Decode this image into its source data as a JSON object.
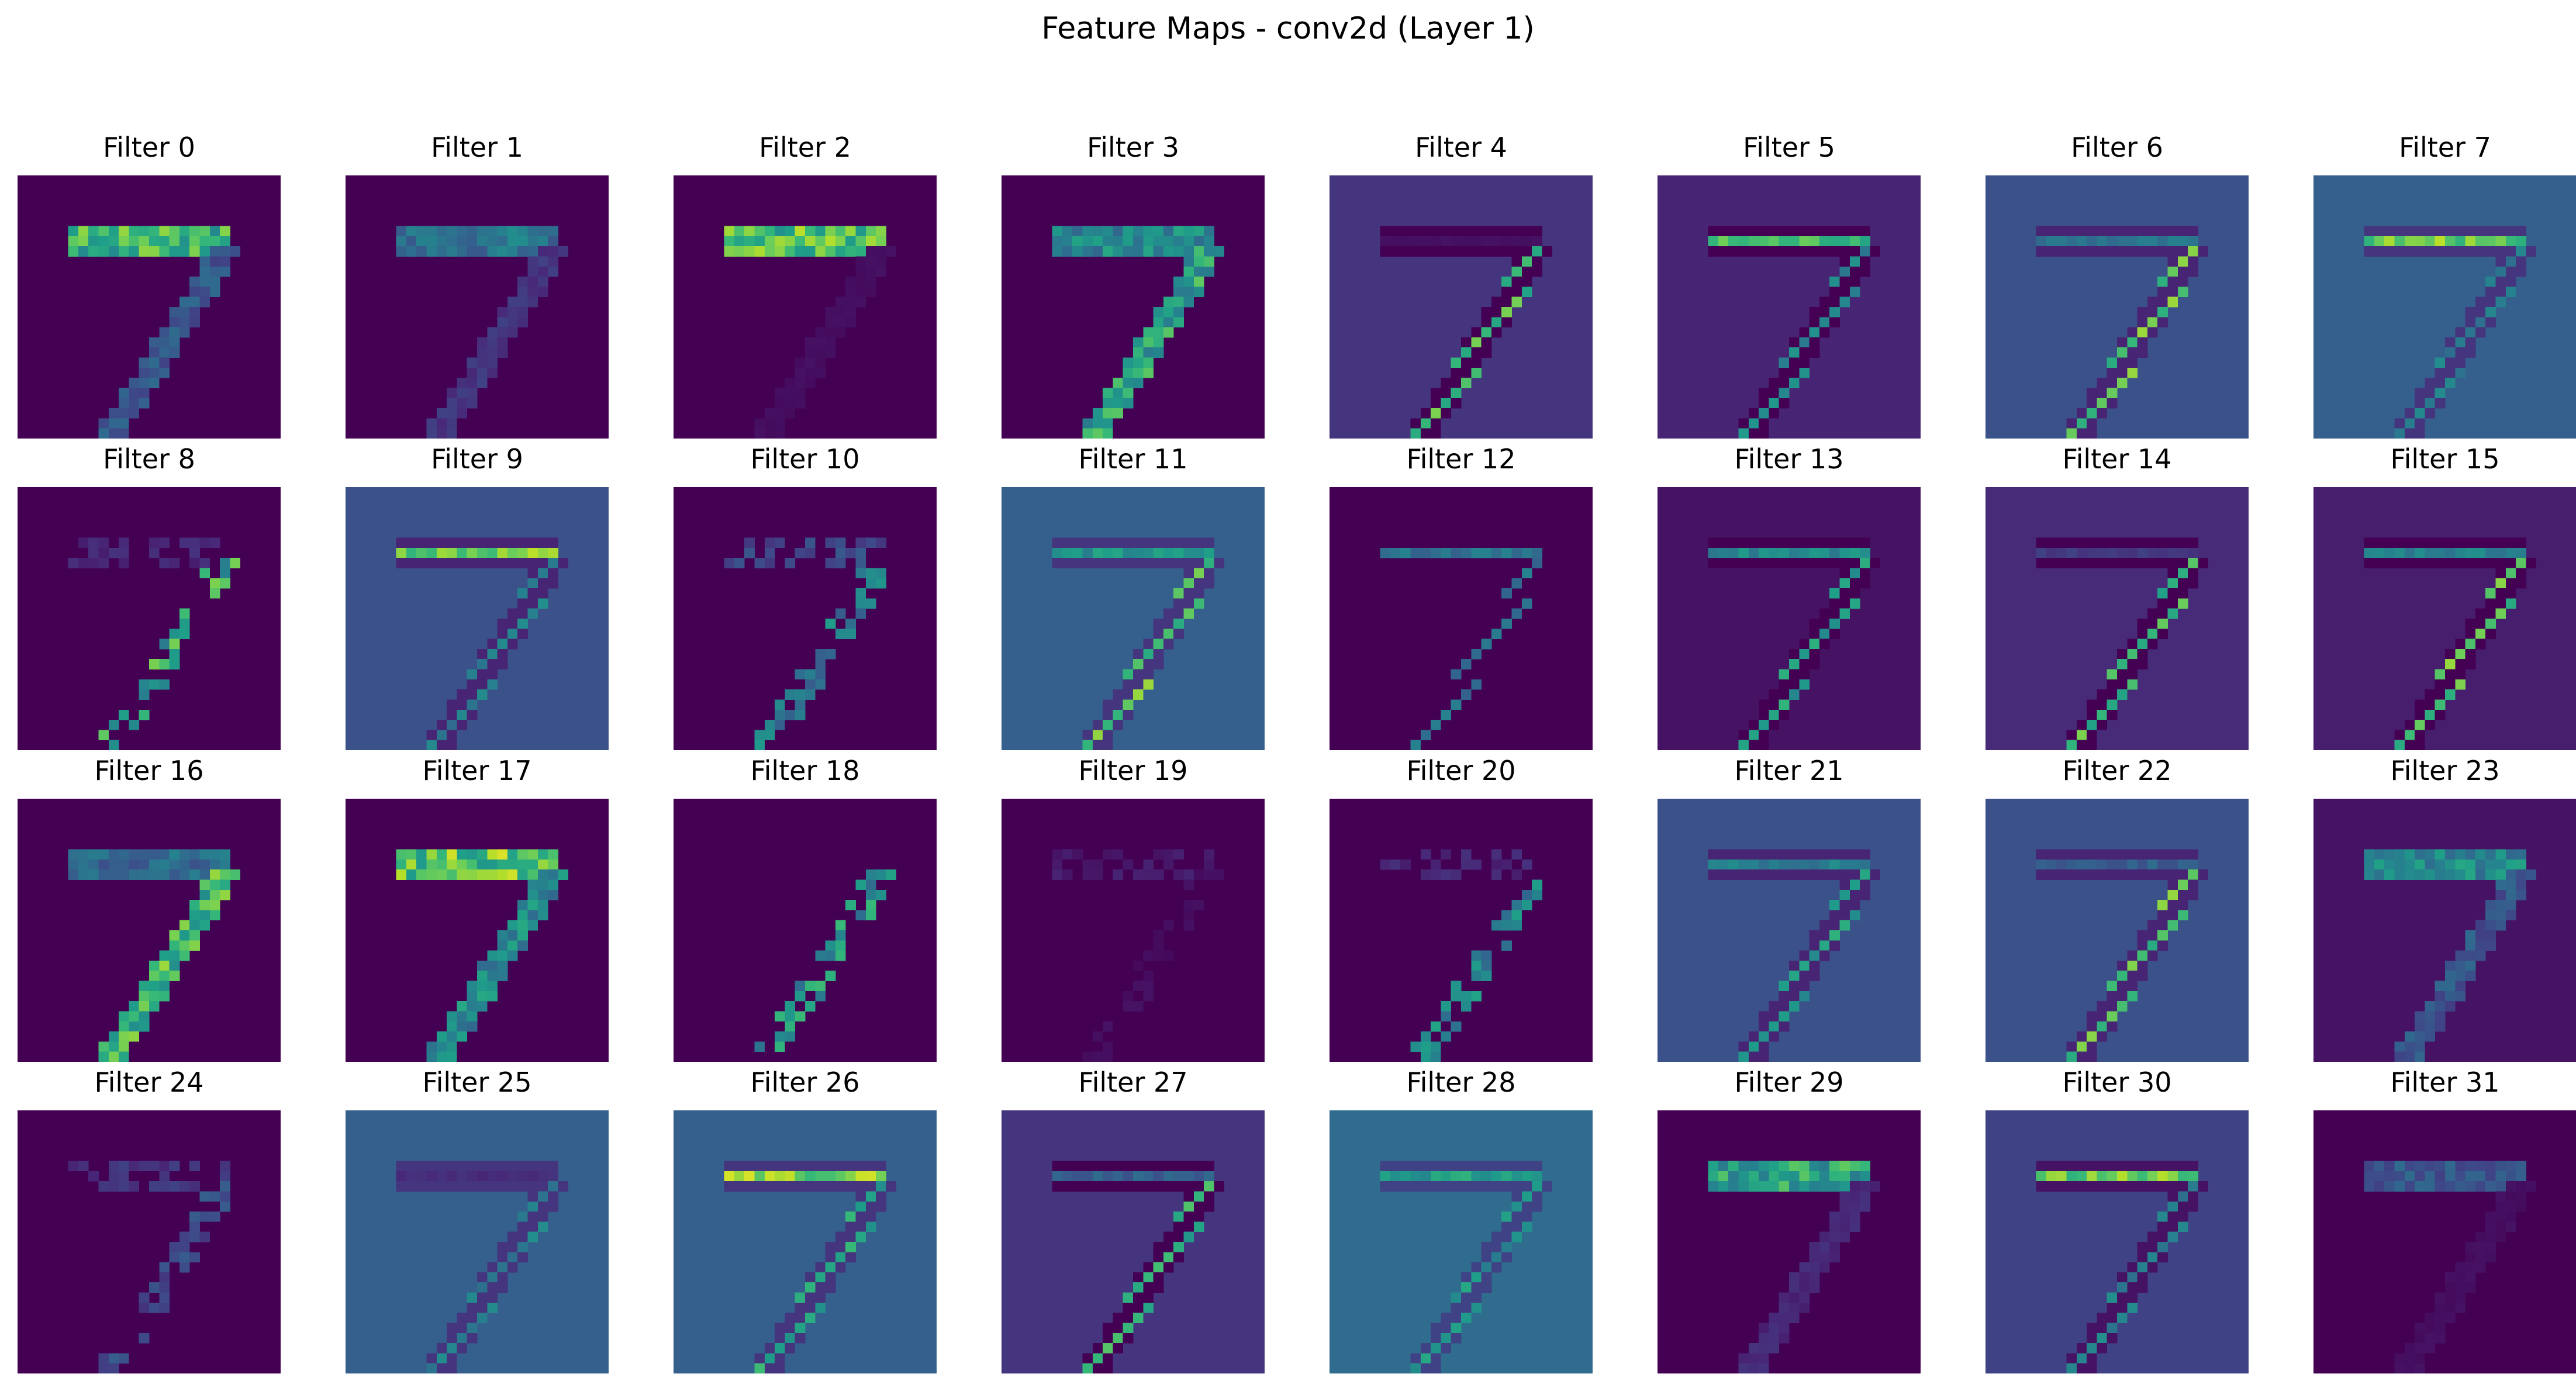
{
  "title": "Feature Maps - conv2d (Layer 1)",
  "chart_data": {
    "type": "heatmap",
    "title": "Feature Maps - conv2d (Layer 1)",
    "grid": false,
    "colormap": "viridis",
    "colormap_stops": [
      "#440154",
      "#482878",
      "#3e4989",
      "#31688e",
      "#26828e",
      "#1f9e89",
      "#35b779",
      "#6ece58",
      "#b5de2b",
      "#fde725"
    ],
    "rows": 4,
    "cols": 8,
    "map_size": 26,
    "input_digit": "7",
    "panels": [
      {
        "label": "Filter 0",
        "background": 0.0,
        "horizontal_stroke": 0.85,
        "diagonal_stroke": 0.35,
        "edge_mode": "body"
      },
      {
        "label": "Filter 1",
        "background": 0.0,
        "horizontal_stroke": 0.5,
        "diagonal_stroke": 0.2,
        "edge_mode": "body"
      },
      {
        "label": "Filter 2",
        "background": 0.0,
        "horizontal_stroke": 0.9,
        "diagonal_stroke": 0.05,
        "edge_mode": "body"
      },
      {
        "label": "Filter 3",
        "background": 0.0,
        "horizontal_stroke": 0.6,
        "diagonal_stroke": 0.75,
        "edge_mode": "body"
      },
      {
        "label": "Filter 4",
        "background": 0.15,
        "horizontal_stroke": 0.05,
        "diagonal_stroke": 0.8,
        "edge_mode": "split"
      },
      {
        "label": "Filter 5",
        "background": 0.1,
        "horizontal_stroke": 0.8,
        "diagonal_stroke": 0.55,
        "edge_mode": "split"
      },
      {
        "label": "Filter 6",
        "background": 0.25,
        "horizontal_stroke": 0.45,
        "diagonal_stroke": 0.85,
        "edge_mode": "split"
      },
      {
        "label": "Filter 7",
        "background": 0.3,
        "horizontal_stroke": 0.9,
        "diagonal_stroke": 0.5,
        "edge_mode": "split"
      },
      {
        "label": "Filter 8",
        "background": 0.0,
        "horizontal_stroke": 0.15,
        "diagonal_stroke": 0.8,
        "edge_mode": "edge"
      },
      {
        "label": "Filter 9",
        "background": 0.25,
        "horizontal_stroke": 0.9,
        "diagonal_stroke": 0.5,
        "edge_mode": "split"
      },
      {
        "label": "Filter 10",
        "background": 0.0,
        "horizontal_stroke": 0.3,
        "diagonal_stroke": 0.55,
        "edge_mode": "edge"
      },
      {
        "label": "Filter 11",
        "background": 0.3,
        "horizontal_stroke": 0.6,
        "diagonal_stroke": 0.85,
        "edge_mode": "split"
      },
      {
        "label": "Filter 12",
        "background": 0.0,
        "horizontal_stroke": 0.45,
        "diagonal_stroke": 0.45,
        "edge_mode": "split"
      },
      {
        "label": "Filter 13",
        "background": 0.05,
        "horizontal_stroke": 0.55,
        "diagonal_stroke": 0.65,
        "edge_mode": "split"
      },
      {
        "label": "Filter 14",
        "background": 0.12,
        "horizontal_stroke": 0.2,
        "diagonal_stroke": 0.8,
        "edge_mode": "split"
      },
      {
        "label": "Filter 15",
        "background": 0.08,
        "horizontal_stroke": 0.5,
        "diagonal_stroke": 0.85,
        "edge_mode": "split"
      },
      {
        "label": "Filter 16",
        "background": 0.0,
        "horizontal_stroke": 0.45,
        "diagonal_stroke": 0.85,
        "edge_mode": "body"
      },
      {
        "label": "Filter 17",
        "background": 0.0,
        "horizontal_stroke": 0.95,
        "diagonal_stroke": 0.6,
        "edge_mode": "body"
      },
      {
        "label": "Filter 18",
        "background": 0.0,
        "horizontal_stroke": 0.0,
        "diagonal_stroke": 0.7,
        "edge_mode": "edge"
      },
      {
        "label": "Filter 19",
        "background": 0.0,
        "horizontal_stroke": 0.1,
        "diagonal_stroke": 0.05,
        "edge_mode": "edge"
      },
      {
        "label": "Filter 20",
        "background": 0.0,
        "horizontal_stroke": 0.15,
        "diagonal_stroke": 0.6,
        "edge_mode": "edge"
      },
      {
        "label": "Filter 21",
        "background": 0.25,
        "horizontal_stroke": 0.5,
        "diagonal_stroke": 0.65,
        "edge_mode": "split"
      },
      {
        "label": "Filter 22",
        "background": 0.25,
        "horizontal_stroke": 0.35,
        "diagonal_stroke": 0.85,
        "edge_mode": "split"
      },
      {
        "label": "Filter 23",
        "background": 0.05,
        "horizontal_stroke": 0.6,
        "diagonal_stroke": 0.35,
        "edge_mode": "body"
      },
      {
        "label": "Filter 24",
        "background": 0.0,
        "horizontal_stroke": 0.2,
        "diagonal_stroke": 0.3,
        "edge_mode": "edge"
      },
      {
        "label": "Filter 25",
        "background": 0.3,
        "horizontal_stroke": 0.15,
        "diagonal_stroke": 0.5,
        "edge_mode": "split"
      },
      {
        "label": "Filter 26",
        "background": 0.3,
        "horizontal_stroke": 0.95,
        "diagonal_stroke": 0.7,
        "edge_mode": "split"
      },
      {
        "label": "Filter 27",
        "background": 0.15,
        "horizontal_stroke": 0.35,
        "diagonal_stroke": 0.75,
        "edge_mode": "split"
      },
      {
        "label": "Filter 28",
        "background": 0.35,
        "horizontal_stroke": 0.65,
        "diagonal_stroke": 0.6,
        "edge_mode": "split"
      },
      {
        "label": "Filter 29",
        "background": 0.0,
        "horizontal_stroke": 0.75,
        "diagonal_stroke": 0.15,
        "edge_mode": "body"
      },
      {
        "label": "Filter 30",
        "background": 0.2,
        "horizontal_stroke": 0.9,
        "diagonal_stroke": 0.5,
        "edge_mode": "split"
      },
      {
        "label": "Filter 31",
        "background": 0.0,
        "horizontal_stroke": 0.35,
        "diagonal_stroke": 0.05,
        "edge_mode": "body"
      }
    ]
  }
}
